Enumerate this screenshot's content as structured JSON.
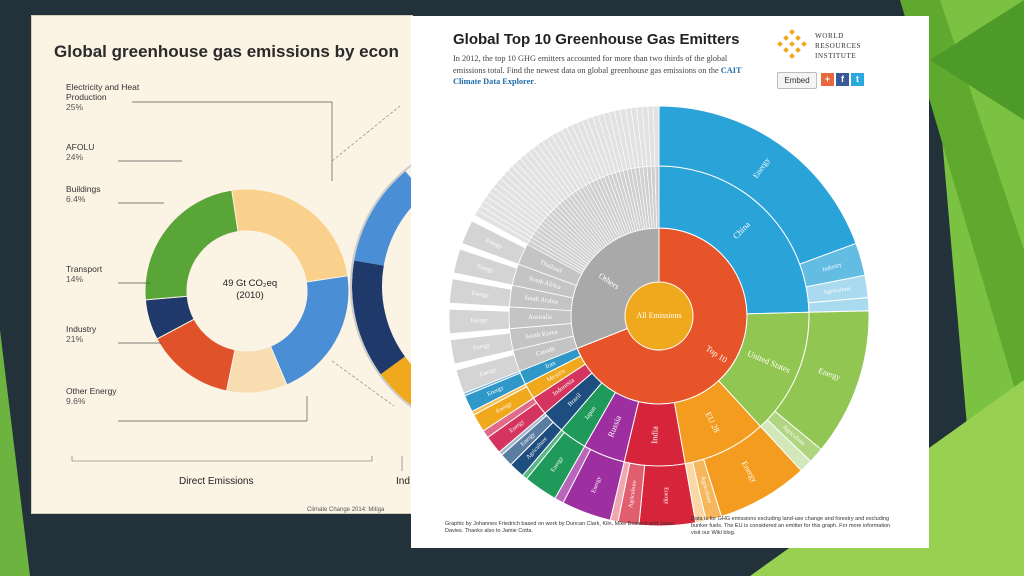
{
  "slide": {
    "accent_colors": [
      "#7cc242",
      "#5fa92e",
      "#98d052"
    ]
  },
  "left_panel": {
    "title": "Global greenhouse gas emissions by econ",
    "center_line1": "49 Gt CO₂eq",
    "center_line2": "(2010)",
    "direct_label": "Direct Emissions",
    "indirect_label": "Ind",
    "source": "Climate Change 2014: Mitiga"
  },
  "right_panel": {
    "title": "Global Top 10 Greenhouse Gas Emitters",
    "desc_main": "In 2012, the top 10 GHG emitters accounted for more than two thirds of the global emissions total. Find the newest data on global greenhouse gas emissions on the",
    "desc_link": "CAIT Climate Data Explorer",
    "desc_end": ".",
    "logo_lines": [
      "WORLD",
      "RESOURCES",
      "INSTITUTE"
    ],
    "embed_label": "Embed",
    "share_icons": [
      "+",
      "f",
      "t"
    ],
    "credit_left": "Graphic by Johannes Friedrich based on work by Duncan Clark, Kiln, Mike Bostock and Jason Davies. Thanks also to Jamie Cotta.",
    "credit_right": "Data is for GHG emissions excluding land-use change and forestry and excluding bunker fuels. The EU is considered an emitter for this graph. For more information visit our Wiki blog."
  },
  "chart_data": [
    {
      "type": "pie",
      "title": "Global greenhouse gas emissions by econ",
      "center_label": "49 Gt CO₂eq (2010)",
      "categories": [
        "Electricity and Heat Production",
        "AFOLU",
        "Buildings",
        "Transport",
        "Industry",
        "Other Energy"
      ],
      "values": [
        25,
        24,
        6.4,
        14,
        21,
        9.6
      ],
      "value_labels": [
        "25%",
        "24%",
        "6.4%",
        "14%",
        "21%",
        "9.6%"
      ],
      "colors": [
        "#f9d08c",
        "#5aa537",
        "#1f3a6a",
        "#e0522a",
        "#4a8fd6",
        "#f7ddb0"
      ]
    },
    {
      "type": "pie",
      "title": "Global Top 10 Greenhouse Gas Emitters",
      "center_label": "All Emissions",
      "groups": [
        {
          "label": "Top 10",
          "value": 69
        },
        {
          "label": "Others",
          "value": 31
        }
      ],
      "countries": [
        {
          "name": "China",
          "value": 24.5,
          "color": "#2aa3d8",
          "sectors": [
            {
              "label": "Energy",
              "value": 19.3
            },
            {
              "label": "Industry",
              "value": 2.5
            },
            {
              "label": "Agriculture",
              "value": 1.7
            },
            {
              "label": "",
              "value": 1.0
            }
          ]
        },
        {
          "name": "United States",
          "value": 13.5,
          "color": "#92c652",
          "sectors": [
            {
              "label": "Energy",
              "value": 11.3
            },
            {
              "label": "Agriculture",
              "value": 1.2
            },
            {
              "label": "",
              "value": 1.0
            }
          ]
        },
        {
          "name": "EU 28",
          "value": 9.0,
          "color": "#f39c1f",
          "sectors": [
            {
              "label": "Energy",
              "value": 7.0
            },
            {
              "label": "Agriculture",
              "value": 1.2
            },
            {
              "label": "",
              "value": 0.8
            }
          ]
        },
        {
          "name": "India",
          "value": 6.5,
          "color": "#d6243a",
          "sectors": [
            {
              "label": "Energy",
              "value": 4.3
            },
            {
              "label": "Agriculture",
              "value": 1.6
            },
            {
              "label": "",
              "value": 0.6
            }
          ]
        },
        {
          "name": "Russia",
          "value": 4.5,
          "color": "#9e2fa0",
          "sectors": [
            {
              "label": "Energy",
              "value": 3.8
            },
            {
              "label": "",
              "value": 0.7
            }
          ]
        },
        {
          "name": "Japan",
          "value": 3.0,
          "color": "#1f9a5a",
          "sectors": [
            {
              "label": "Energy",
              "value": 2.6
            },
            {
              "label": "",
              "value": 0.4
            }
          ]
        },
        {
          "name": "Brazil",
          "value": 2.5,
          "color": "#1e4e7f",
          "sectors": [
            {
              "label": "Agriculture",
              "value": 1.2
            },
            {
              "label": "Energy",
              "value": 1.0
            },
            {
              "label": "",
              "value": 0.3
            }
          ]
        },
        {
          "name": "Indonesia",
          "value": 2.0,
          "color": "#d4345e",
          "sectors": [
            {
              "label": "Energy",
              "value": 1.4
            },
            {
              "label": "",
              "value": 0.6
            }
          ]
        },
        {
          "name": "Mexico",
          "value": 1.7,
          "color": "#f0a81c",
          "sectors": [
            {
              "label": "Energy",
              "value": 1.4
            },
            {
              "label": "",
              "value": 0.3
            }
          ]
        },
        {
          "name": "Iran",
          "value": 1.5,
          "color": "#2f98c8",
          "sectors": [
            {
              "label": "Energy",
              "value": 1.3
            },
            {
              "label": "",
              "value": 0.2
            }
          ]
        }
      ],
      "other_countries": [
        "Canada",
        "South Korea",
        "Australia",
        "Saudi Arabia",
        "South Africa",
        "Thailand"
      ],
      "other_sector_label": "Energy"
    }
  ]
}
